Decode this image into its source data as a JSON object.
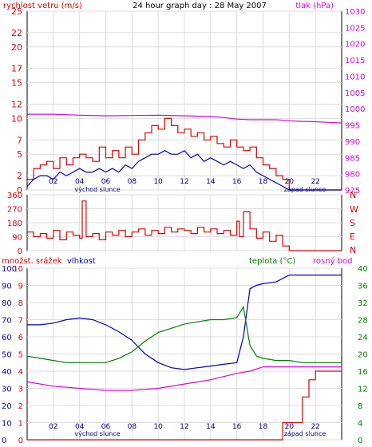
{
  "chart_data": [
    {
      "id": "wind",
      "type": "line",
      "title": "24 hour graph day : 28 May 2007",
      "left_axis_label": "rychlost vetru (m/s)",
      "right_axis_label": "tlak (hPa)",
      "ylim_left": [
        0,
        25
      ],
      "yticks_left": [
        "0",
        "2",
        "5",
        "7",
        "10",
        "12",
        "15",
        "17",
        "20",
        "22",
        "25"
      ],
      "ylim_right": [
        975,
        1030
      ],
      "yticks_right": [
        "975",
        "980",
        "985",
        "990",
        "995",
        "1000",
        "1005",
        "1010",
        "1015",
        "1020",
        "1025",
        "1030"
      ],
      "xlim": [
        0,
        24
      ],
      "xticks": [
        "02",
        "04",
        "06",
        "08",
        "10",
        "12",
        "14",
        "16",
        "18",
        "20",
        "22"
      ],
      "sunrise_label": "východ slunce",
      "sunset_label": "západ slunce",
      "series": [
        {
          "key": "gust",
          "color": "#e00000",
          "axis": "left",
          "x": [
            0,
            0.5,
            1,
            1.5,
            2,
            2.5,
            3,
            3.5,
            4,
            4.5,
            5,
            5.5,
            6,
            6.5,
            7,
            7.5,
            8,
            8.5,
            9,
            9.5,
            10,
            10.5,
            11,
            11.5,
            12,
            12.5,
            13,
            13.5,
            14,
            14.5,
            15,
            15.5,
            16,
            16.5,
            17,
            17.5,
            18,
            18.5,
            19,
            19.5,
            20,
            21,
            22,
            23,
            24
          ],
          "y": [
            1.5,
            3,
            3.5,
            4,
            3,
            4.5,
            3.5,
            4.5,
            5,
            4.5,
            4,
            6,
            4.5,
            5.5,
            4.5,
            6,
            5,
            7,
            8,
            9,
            8.5,
            10,
            9,
            8,
            8.5,
            7.5,
            8,
            7,
            7.5,
            6.5,
            6,
            7,
            6,
            5.5,
            6,
            4.5,
            3.5,
            3,
            2,
            1.5,
            0,
            0,
            0,
            0,
            0
          ]
        },
        {
          "key": "wind",
          "color": "#0000c0",
          "axis": "left",
          "x": [
            0,
            0.5,
            1,
            1.5,
            2,
            2.5,
            3,
            3.5,
            4,
            4.5,
            5,
            5.5,
            6,
            6.5,
            7,
            7.5,
            8,
            8.5,
            9,
            9.5,
            10,
            10.5,
            11,
            11.5,
            12,
            12.5,
            13,
            13.5,
            14,
            14.5,
            15,
            15.5,
            16,
            16.5,
            17,
            17.5,
            18,
            18.5,
            19,
            19.5,
            20,
            21,
            22,
            23,
            24
          ],
          "y": [
            0.5,
            1.5,
            2,
            2,
            1.5,
            2.5,
            2,
            2.5,
            3,
            2.5,
            2.5,
            3,
            2.5,
            3,
            2.5,
            3.5,
            3,
            4,
            4.5,
            5,
            5,
            5.5,
            5,
            5,
            5.5,
            4.5,
            5,
            4,
            4.5,
            4,
            3.5,
            4,
            3.5,
            3,
            3.5,
            2.5,
            2,
            1.5,
            1,
            0.5,
            0,
            0,
            0,
            0,
            0
          ]
        },
        {
          "key": "pressure",
          "color": "#e000e0",
          "axis": "right",
          "x": [
            0,
            2,
            4,
            6,
            8,
            10,
            12,
            14,
            15,
            16,
            17,
            18,
            19,
            20,
            21,
            22,
            23,
            24
          ],
          "y": [
            998.3,
            998.3,
            998.0,
            997.8,
            997.9,
            998.0,
            997.8,
            997.6,
            997.3,
            996.8,
            996.6,
            996.6,
            996.6,
            996.3,
            996.1,
            996.0,
            995.8,
            995.6
          ]
        }
      ]
    },
    {
      "id": "direction",
      "type": "line",
      "ylim": [
        0,
        360
      ],
      "yticks": [
        "0",
        "90",
        "180",
        "270",
        "360"
      ],
      "right_labels": [
        "N",
        "W",
        "S",
        "E",
        "N"
      ],
      "series": [
        {
          "key": "direction",
          "color": "#e00000",
          "x": [
            0,
            0.5,
            1,
            1.5,
            2,
            2.5,
            3,
            3.5,
            4,
            4.2,
            4.5,
            5,
            5.5,
            6,
            6.5,
            7,
            7.5,
            8,
            8.5,
            9,
            9.5,
            10,
            10.5,
            11,
            11.5,
            12,
            12.5,
            13,
            13.5,
            14,
            14.5,
            15,
            15.5,
            16,
            16.2,
            16.5,
            17,
            17.5,
            18,
            18.5,
            19,
            19.5,
            20,
            21,
            22,
            23,
            24
          ],
          "y": [
            120,
            90,
            110,
            80,
            130,
            70,
            120,
            100,
            80,
            320,
            90,
            110,
            70,
            120,
            100,
            130,
            90,
            120,
            140,
            100,
            130,
            110,
            150,
            120,
            140,
            130,
            110,
            150,
            120,
            140,
            110,
            130,
            100,
            190,
            90,
            250,
            140,
            80,
            120,
            60,
            100,
            30,
            0,
            0,
            0,
            0,
            0
          ]
        }
      ]
    },
    {
      "id": "temp-humidity",
      "type": "line",
      "left_axis_label": "množst. srážek",
      "humidity_label": "vlhkost",
      "temperature_label": "teplota (°C)",
      "dewpoint_label": "rosný bod",
      "ylim_rain": [
        0,
        10
      ],
      "yticks_rain": [
        "0",
        "1",
        "2",
        "3",
        "4",
        "5",
        "6",
        "7",
        "8",
        "9",
        "10"
      ],
      "ylim_humidity": [
        0,
        100
      ],
      "yticks_humidity": [
        "0",
        "10",
        "20",
        "30",
        "40",
        "50",
        "60",
        "70",
        "80",
        "90",
        "100"
      ],
      "ylim_temp": [
        0,
        40
      ],
      "yticks_temp": [
        "0",
        "4",
        "8",
        "12",
        "16",
        "20",
        "24",
        "28",
        "32",
        "36",
        "40"
      ],
      "sunrise_label": "východ slunce",
      "sunset_label": "západ slunce",
      "series": [
        {
          "key": "humidity",
          "color": "#0000c0",
          "axis": "humidity",
          "x": [
            0,
            1,
            2,
            3,
            4,
            5,
            6,
            7,
            8,
            9,
            10,
            11,
            12,
            13,
            14,
            15,
            16,
            16.5,
            17,
            17.5,
            18,
            19,
            20,
            21,
            22,
            23,
            24
          ],
          "y": [
            67,
            67,
            68,
            70,
            71,
            70,
            67,
            63,
            58,
            50,
            45,
            42,
            41,
            42,
            43,
            44,
            45,
            60,
            88,
            90,
            91,
            92,
            96,
            96,
            96,
            96,
            96
          ]
        },
        {
          "key": "temperature",
          "color": "#008000",
          "axis": "temp",
          "x": [
            0,
            1,
            2,
            3,
            4,
            5,
            6,
            7,
            8,
            9,
            10,
            11,
            12,
            13,
            14,
            15,
            16,
            16.5,
            17,
            17.5,
            18,
            19,
            20,
            21,
            22,
            23,
            24
          ],
          "y": [
            19.5,
            19.0,
            18.5,
            18.0,
            18.0,
            18.0,
            18.0,
            19.0,
            20.5,
            23.0,
            25.0,
            26.0,
            27.0,
            27.5,
            28.0,
            28.0,
            28.5,
            31.0,
            22.0,
            19.5,
            19.0,
            18.5,
            18.5,
            18.0,
            18.0,
            18.0,
            18.0
          ]
        },
        {
          "key": "dewpoint",
          "color": "#e000e0",
          "axis": "temp",
          "x": [
            0,
            2,
            4,
            6,
            8,
            10,
            12,
            14,
            16,
            17,
            18,
            19,
            20,
            22,
            24
          ],
          "y": [
            13.5,
            12.5,
            12.0,
            11.5,
            11.5,
            12.0,
            13.0,
            14.0,
            15.5,
            16.0,
            17.0,
            17.0,
            17.0,
            17.0,
            17.0
          ]
        },
        {
          "key": "rain",
          "color": "#e00000",
          "axis": "rain",
          "x": [
            0,
            19.4,
            19.5,
            21,
            21.5,
            22,
            23,
            24
          ],
          "y": [
            0,
            0,
            1,
            2.5,
            3.5,
            4,
            4,
            4
          ]
        }
      ]
    }
  ]
}
